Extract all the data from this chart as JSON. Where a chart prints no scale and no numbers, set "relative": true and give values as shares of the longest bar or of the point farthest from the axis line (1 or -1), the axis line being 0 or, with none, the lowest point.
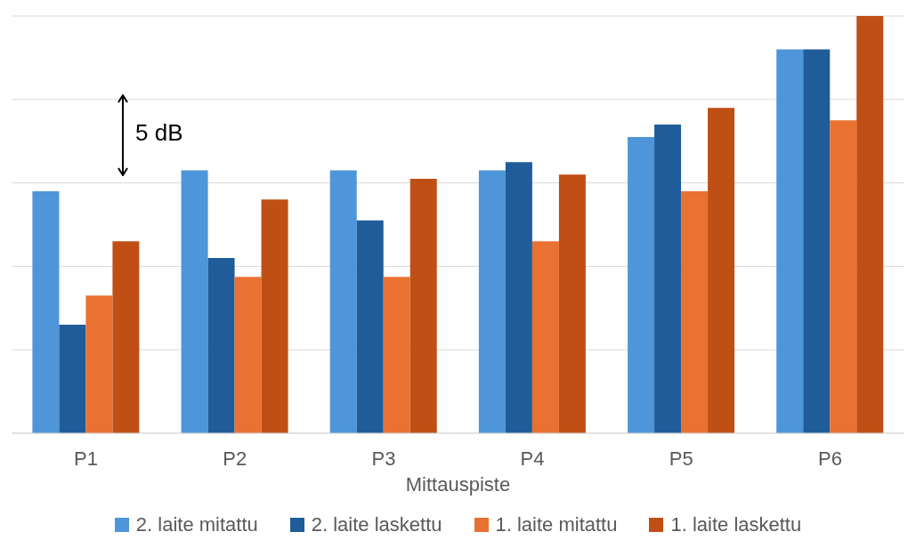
{
  "chart_data": {
    "type": "bar",
    "relative": true,
    "xlabel": "Mittauspiste",
    "categories": [
      "P1",
      "P2",
      "P3",
      "P4",
      "P5",
      "P6"
    ],
    "series": [
      {
        "name": "2. laite mitattu",
        "color": "#4e95d9",
        "values": [
          0.58,
          0.63,
          0.63,
          0.63,
          0.71,
          0.92
        ]
      },
      {
        "name": "2. laite laskettu",
        "color": "#1f5c99",
        "values": [
          0.26,
          0.42,
          0.51,
          0.65,
          0.74,
          0.92
        ]
      },
      {
        "name": "1. laite mitattu",
        "color": "#e97132",
        "values": [
          0.33,
          0.375,
          0.375,
          0.46,
          0.58,
          0.75
        ]
      },
      {
        "name": "1. laite laskettu",
        "color": "#c04f15",
        "values": [
          0.46,
          0.56,
          0.61,
          0.62,
          0.78,
          1
        ]
      }
    ],
    "annotations": [
      "5 dB"
    ],
    "grid": "y",
    "legend": "bottom"
  }
}
